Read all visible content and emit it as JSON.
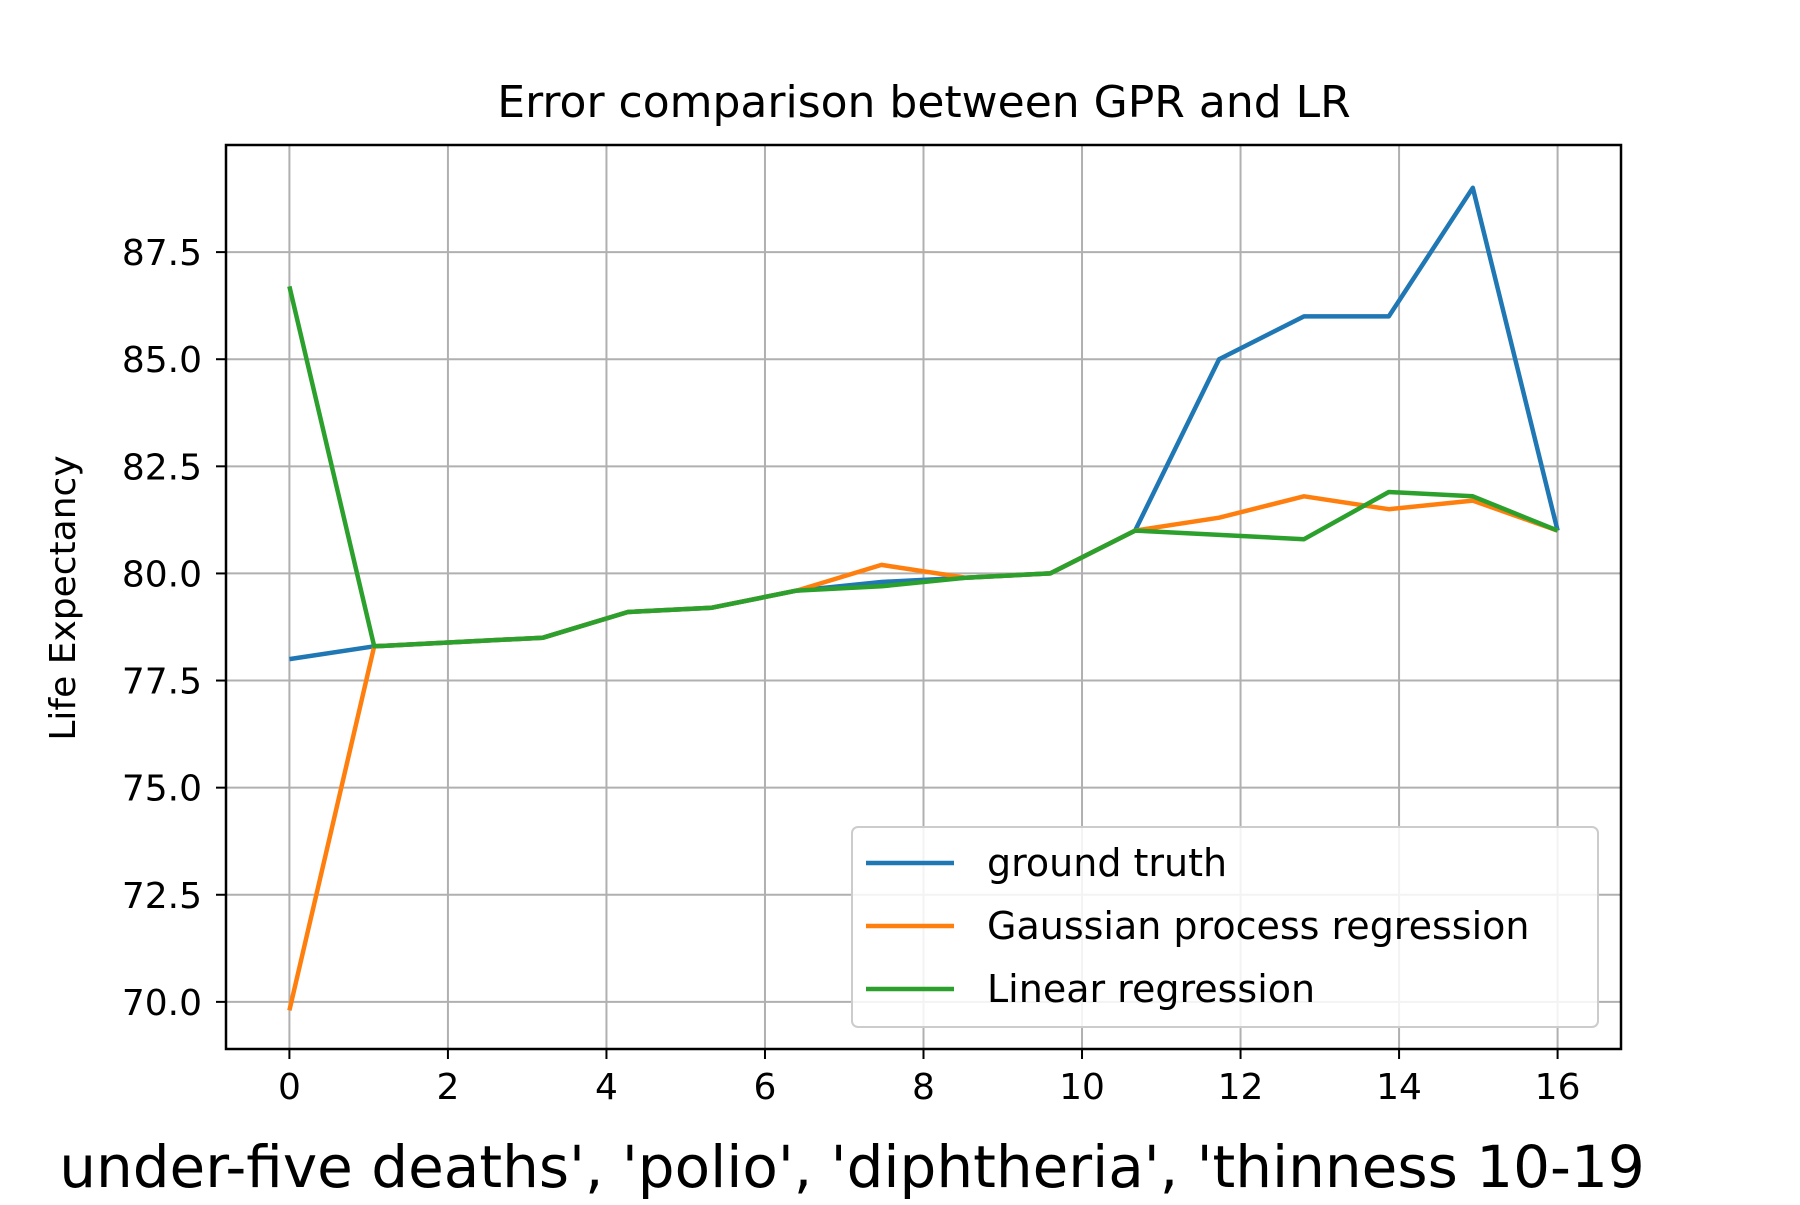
{
  "chart_data": {
    "type": "line",
    "title": "Error comparison between GPR and LR",
    "xlabel": "under-five  deaths', 'polio', 'diphtheria', 'thinness  10-19",
    "ylabel": "Life Expectancy",
    "xlim": [
      -0.8,
      16.8
    ],
    "ylim": [
      68.9,
      90.0
    ],
    "xticks": [
      0,
      2,
      4,
      6,
      8,
      10,
      12,
      14,
      16
    ],
    "xtick_labels": [
      "0",
      "2",
      "4",
      "6",
      "8",
      "10",
      "12",
      "14",
      "16"
    ],
    "yticks": [
      70.0,
      72.5,
      75.0,
      77.5,
      80.0,
      82.5,
      85.0,
      87.5
    ],
    "ytick_labels": [
      "70.0",
      "72.5",
      "75.0",
      "77.5",
      "80.0",
      "82.5",
      "85.0",
      "87.5"
    ],
    "grid": true,
    "legend_position": "lower-right",
    "x": [
      0,
      1.07,
      2.13,
      3.2,
      4.27,
      5.33,
      6.4,
      7.47,
      8.53,
      9.6,
      10.67,
      11.73,
      12.8,
      13.87,
      14.93,
      16.0
    ],
    "series": [
      {
        "name": "ground truth",
        "color": "#1f77b4",
        "values": [
          78.0,
          78.3,
          78.4,
          78.5,
          79.1,
          79.2,
          79.6,
          79.8,
          79.9,
          80.0,
          81.0,
          85.0,
          86.0,
          86.0,
          89.0,
          81.0
        ]
      },
      {
        "name": "Gaussian process regression",
        "color": "#ff7f0e",
        "values": [
          69.8,
          78.3,
          78.4,
          78.5,
          79.1,
          79.2,
          79.6,
          80.2,
          79.9,
          80.0,
          81.0,
          81.3,
          81.8,
          81.5,
          81.7,
          81.0
        ]
      },
      {
        "name": "Linear regression",
        "color": "#2ca02c",
        "values": [
          86.7,
          78.3,
          78.4,
          78.5,
          79.1,
          79.2,
          79.6,
          79.7,
          79.9,
          80.0,
          81.0,
          80.9,
          80.8,
          81.9,
          81.8,
          81.0
        ]
      }
    ]
  }
}
